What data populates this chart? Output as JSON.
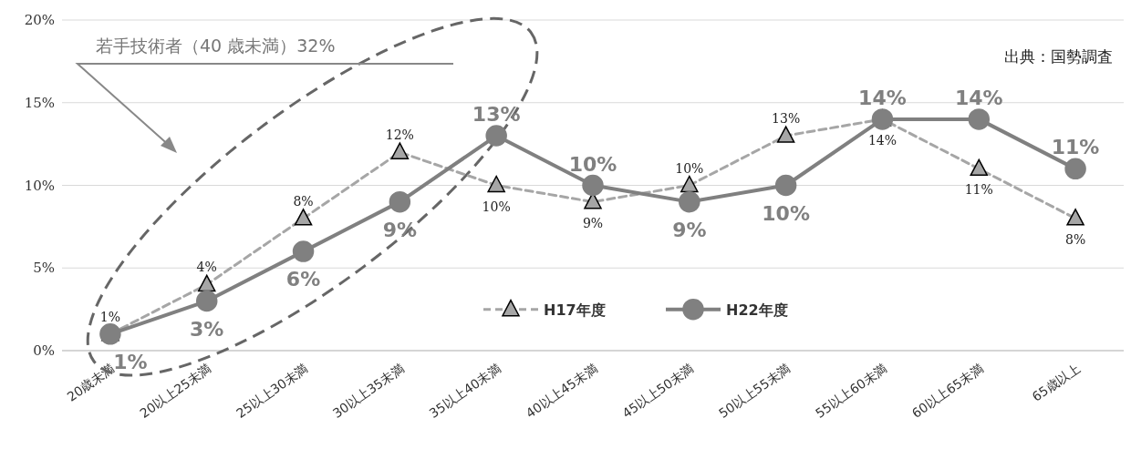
{
  "chart_data": {
    "type": "line",
    "categories": [
      "20歳未満",
      "20以上25未満",
      "25以上30未満",
      "30以上35未満",
      "35以上40未満",
      "40以上45未満",
      "45以上50未満",
      "50以上55未満",
      "55以上60未満",
      "60以上65未満",
      "65歳以上"
    ],
    "series": [
      {
        "name": "H17年度",
        "color": "#a6a6a6",
        "marker": "triangle",
        "line_style": "dashed",
        "values": [
          1,
          4,
          8,
          12,
          10,
          9,
          10,
          13,
          14,
          11,
          8
        ],
        "value_labels": [
          "1%",
          "4%",
          "8%",
          "12%",
          "10%",
          "9%",
          "10%",
          "13%",
          "14%",
          "11%",
          "8%"
        ]
      },
      {
        "name": "H22年度",
        "color": "#808080",
        "marker": "circle",
        "line_style": "solid",
        "values": [
          1,
          3,
          6,
          9,
          13,
          10,
          9,
          10,
          14,
          14,
          11
        ],
        "value_labels": [
          "1%",
          "3%",
          "6%",
          "9%",
          "13%",
          "10%",
          "9%",
          "10%",
          "14%",
          "14%",
          "11%"
        ]
      }
    ],
    "ylim": [
      0,
      20
    ],
    "yticks": [
      {
        "value": 0,
        "label": "0%"
      },
      {
        "value": 5,
        "label": "5%"
      },
      {
        "value": 10,
        "label": "10%"
      },
      {
        "value": 15,
        "label": "15%"
      },
      {
        "value": 20,
        "label": "20%"
      }
    ],
    "grid": "y",
    "legend": "bottom",
    "annotations": [
      "若手技術者（40 歳未満）32%",
      "出典：国勢調査"
    ]
  }
}
